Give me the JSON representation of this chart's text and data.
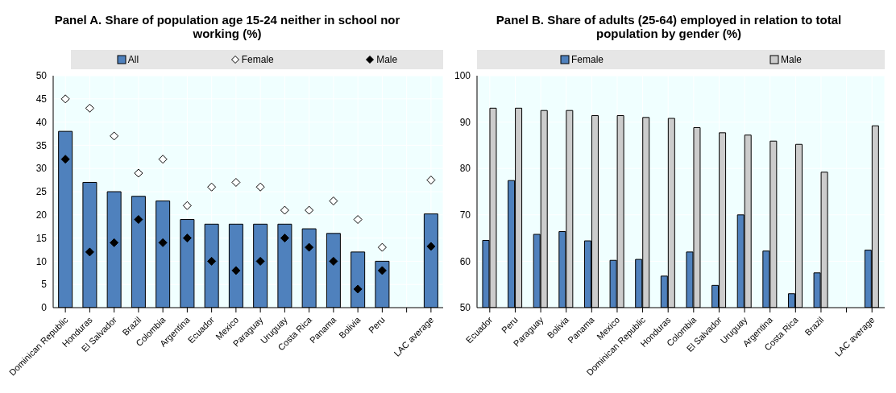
{
  "chart_data": [
    {
      "type": "bar",
      "title": "Panel A. Share of population age 15-24 neither in school nor working (%)",
      "categories": [
        "Dominican Republic",
        "Honduras",
        "El Salvador",
        "Brazil",
        "Colombia",
        "Argentina",
        "Ecuador",
        "Mexico",
        "Paraguay",
        "Uruguay",
        "Costa Rica",
        "Panama",
        "Bolivia",
        "Peru",
        null,
        "LAC average"
      ],
      "series": [
        {
          "name": "All",
          "color": "#4f81bd",
          "values": [
            38,
            27,
            25,
            24,
            23,
            19,
            18,
            18,
            18,
            18,
            17,
            16,
            12,
            10,
            null,
            20.2
          ]
        },
        {
          "name": "Female",
          "type": "scatter",
          "color": "#ffffff",
          "values": [
            45,
            43,
            37,
            29,
            32,
            22,
            26,
            27,
            26,
            21,
            21,
            23,
            19,
            13,
            null,
            27.5
          ]
        },
        {
          "name": "Male",
          "type": "scatter",
          "color": "#000000",
          "values": [
            32,
            12,
            14,
            19,
            14,
            15,
            10,
            8,
            10,
            15,
            13,
            10,
            4,
            8,
            null,
            13.2
          ]
        }
      ],
      "ylim": [
        0,
        50
      ],
      "yticks": [
        0,
        5,
        10,
        15,
        20,
        25,
        30,
        35,
        40,
        45,
        50
      ],
      "grid": true,
      "legend": "top",
      "marker": "diamond"
    },
    {
      "type": "bar",
      "title": "Panel B. Share of adults (25-64) employed in relation to total population by gender (%)",
      "categories": [
        "Ecuador",
        "Peru",
        "Paraguay",
        "Bolivia",
        "Panama",
        "Mexico",
        "Dominican Republic",
        "Honduras",
        "Colombia",
        "El Salvador",
        "Uruguay",
        "Argentina",
        "Costa Rica",
        "Brazil",
        null,
        "LAC average"
      ],
      "series": [
        {
          "name": "Female",
          "color": "#4f81bd",
          "values": [
            64.5,
            77.4,
            65.8,
            66.4,
            64.4,
            60.2,
            60.4,
            56.8,
            62,
            54.8,
            70,
            62.2,
            53,
            57.5,
            null,
            62.4
          ]
        },
        {
          "name": "Male",
          "color": "#cccccc",
          "values": [
            93,
            93,
            92.5,
            92.5,
            91.4,
            91.4,
            91,
            90.8,
            88.8,
            87.7,
            87.2,
            85.9,
            85.2,
            79.2,
            null,
            89.2
          ]
        }
      ],
      "ylim": [
        50,
        100
      ],
      "yticks": [
        50,
        60,
        70,
        80,
        90,
        100
      ],
      "grid": true,
      "legend": "top"
    }
  ]
}
